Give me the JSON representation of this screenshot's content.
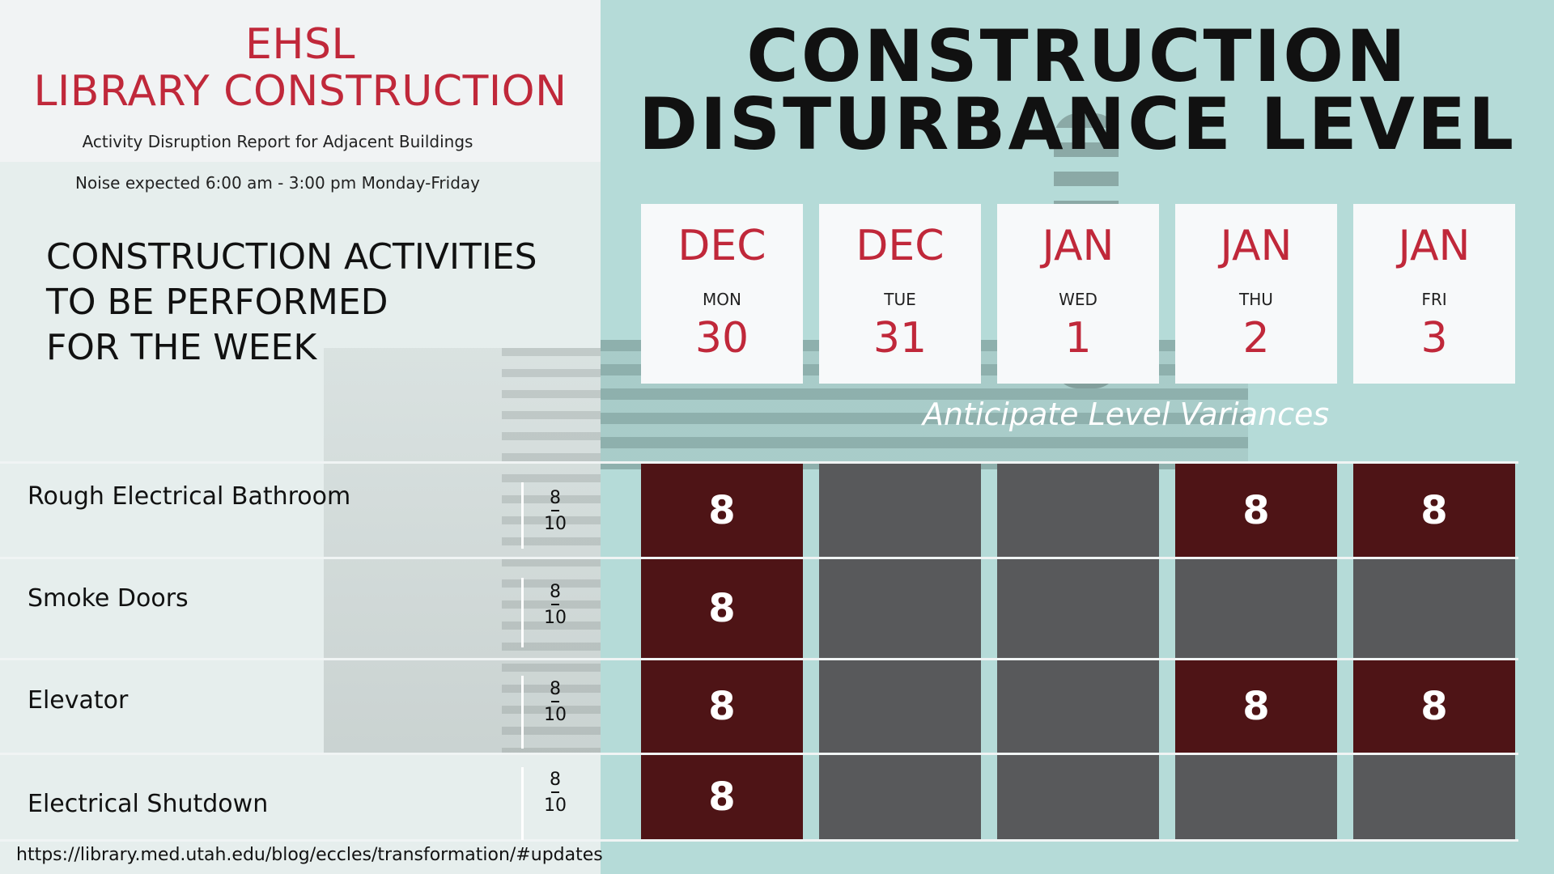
{
  "header": {
    "org_line1": "EHSL",
    "org_line2": "LIBRARY CONSTRUCTION",
    "subtitle": "Activity Disruption Report for Adjacent Buildings",
    "noise_note": "Noise expected 6:00 am - 3:00 pm Monday-Friday",
    "title_line1": "CONSTRUCTION",
    "title_line2": "DISTURBANCE LEVEL"
  },
  "activities_heading": {
    "line1": "CONSTRUCTION ACTIVITIES",
    "line2": "TO BE PERFORMED",
    "line3": "FOR THE WEEK"
  },
  "days": [
    {
      "month": "DEC",
      "weekday": "MON",
      "day": "30"
    },
    {
      "month": "DEC",
      "weekday": "TUE",
      "day": "31"
    },
    {
      "month": "JAN",
      "weekday": "WED",
      "day": "1"
    },
    {
      "month": "JAN",
      "weekday": "THU",
      "day": "2"
    },
    {
      "month": "JAN",
      "weekday": "FRI",
      "day": "3"
    }
  ],
  "variance_note": "Anticipate Level Variances",
  "activities": [
    {
      "name": "Rough Electrical Bathroom",
      "level_num": "8",
      "level_den": "10",
      "cells": [
        "8",
        "",
        "",
        "8",
        "8"
      ]
    },
    {
      "name": "Smoke Doors",
      "level_num": "8",
      "level_den": "10",
      "cells": [
        "8",
        "",
        "",
        "",
        ""
      ]
    },
    {
      "name": "Elevator",
      "level_num": "8",
      "level_den": "10",
      "cells": [
        "8",
        "",
        "",
        "8",
        "8"
      ]
    },
    {
      "name": "Electrical Shutdown",
      "level_num": "8",
      "level_den": "10",
      "cells": [
        "8",
        "",
        "",
        "",
        ""
      ]
    }
  ],
  "footer_url": "https://library.med.utah.edu/blog/eccles/transformation/#updates",
  "colors": {
    "accent_red": "#c0283a",
    "active_cell": "#4e1416",
    "inactive_cell": "#58595b",
    "teal_bg": "#b5dbd8"
  }
}
